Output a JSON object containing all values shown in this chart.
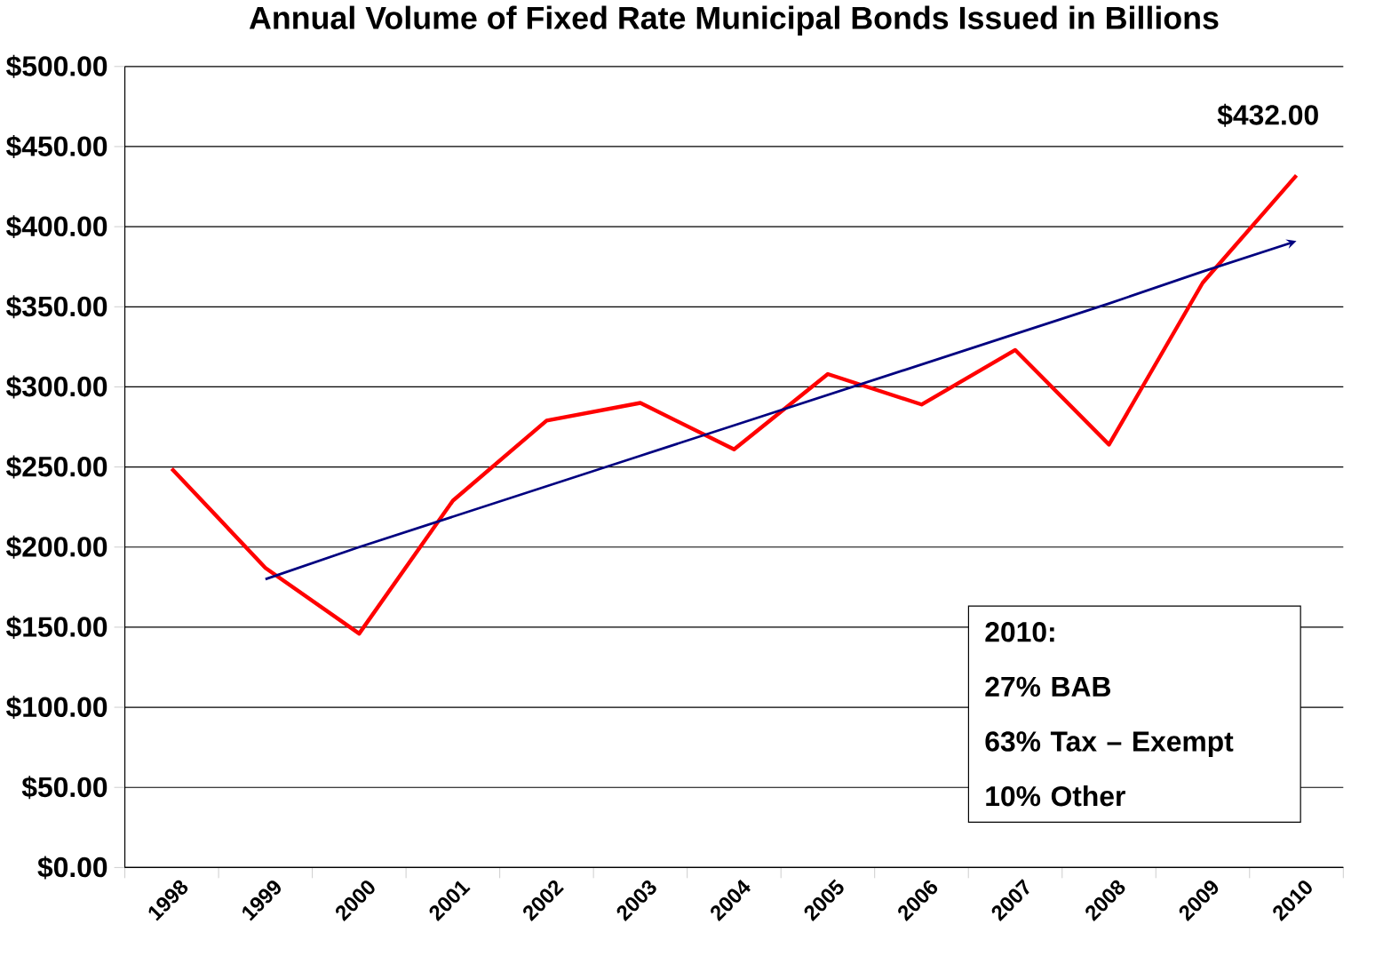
{
  "chart_data": {
    "type": "line",
    "title": "Annual Volume of Fixed Rate Municipal Bonds Issued in Billions",
    "categories": [
      "1998",
      "1999",
      "2000",
      "2001",
      "2002",
      "2003",
      "2004",
      "2005",
      "2006",
      "2007",
      "2008",
      "2009",
      "2010"
    ],
    "series": [
      {
        "color": "#ff0000",
        "values": [
          249,
          187,
          146,
          229,
          279,
          290,
          261,
          308,
          289,
          323,
          264,
          365,
          432
        ]
      },
      {
        "type": "line",
        "color": "#000080",
        "values": [
          null,
          180,
          200,
          219,
          238,
          257,
          276,
          295,
          314,
          333,
          352,
          372,
          391
        ]
      }
    ],
    "ylim": [
      0,
      500
    ],
    "yticks": [
      {
        "value": 0,
        "label": "$0.00"
      },
      {
        "value": 50,
        "label": "$50.00"
      },
      {
        "value": 100,
        "label": "$100.00"
      },
      {
        "value": 150,
        "label": "$150.00"
      },
      {
        "value": 200,
        "label": "$200.00"
      },
      {
        "value": 250,
        "label": "$250.00"
      },
      {
        "value": 300,
        "label": "$300.00"
      },
      {
        "value": 350,
        "label": "$350.00"
      },
      {
        "value": 400,
        "label": "$400.00"
      },
      {
        "value": 450,
        "label": "$450.00"
      },
      {
        "value": 500,
        "label": "$500.00"
      }
    ],
    "grid": "y",
    "annotations": [
      {
        "text": "$432.00",
        "x": "2010",
        "y": 432
      },
      "2010:",
      "27% BAB",
      "63% Tax – Exempt",
      "10% Other"
    ]
  }
}
